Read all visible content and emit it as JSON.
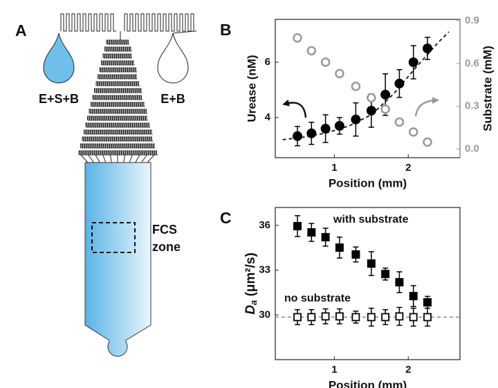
{
  "diagram": {
    "panel_label": "A",
    "inlet_left": "E+S+B",
    "inlet_right": "E+B",
    "zone_label": [
      "FCS",
      "zone"
    ]
  },
  "chart_data": [
    {
      "type": "scatter",
      "panel_label": "B",
      "xlabel": "Position (mm)",
      "ylabel": "Urease (nM)",
      "y2label": "Substrate (mM)",
      "xlim": [
        0.2,
        2.7
      ],
      "xticks": [
        1,
        2
      ],
      "ylim": [
        2.55,
        7.55
      ],
      "yticks": [
        4,
        6
      ],
      "y2lim": [
        -0.06,
        0.91
      ],
      "y2ticks": [
        {
          "value": 0,
          "label": "0.0"
        },
        {
          "value": 0.3,
          "label": "0.3"
        },
        0.6,
        0.9
      ],
      "series": [
        {
          "color": "#000000",
          "marker": "filled-circle",
          "x": [
            0.5,
            0.69,
            0.88,
            1.07,
            1.29,
            1.5,
            1.69,
            1.88,
            2.07,
            2.26
          ],
          "values": [
            3.33,
            3.43,
            3.6,
            3.7,
            3.93,
            4.25,
            4.83,
            5.23,
            6.0,
            6.5
          ],
          "errors": [
            0.35,
            0.4,
            0.5,
            0.3,
            0.6,
            0.6,
            0.75,
            0.5,
            0.6,
            0.4
          ]
        },
        {
          "color": "#999999",
          "marker": "open-circle",
          "axis": "y2",
          "x": [
            0.5,
            0.69,
            0.88,
            1.07,
            1.29,
            1.5,
            1.69,
            1.88,
            2.07,
            2.26
          ],
          "values": [
            0.78,
            0.69,
            0.61,
            0.53,
            0.44,
            0.36,
            0.28,
            0.19,
            0.12,
            0.05
          ]
        }
      ],
      "fit": {
        "x": [
          0.3,
          0.6,
          0.9,
          1.2,
          1.5,
          1.8,
          2.1,
          2.4,
          2.55
        ],
        "values": [
          3.2,
          3.3,
          3.45,
          3.7,
          4.1,
          4.85,
          5.8,
          6.7,
          7.1
        ]
      }
    },
    {
      "type": "scatter",
      "panel_label": "C",
      "xlabel": "Position (mm)",
      "ylabel": {
        "main": "D",
        "sub": "a",
        "unit": " (μm²/s)"
      },
      "xlim": [
        0.2,
        2.7
      ],
      "xticks": [
        1,
        2
      ],
      "ylim": [
        27,
        37.2
      ],
      "yticks": [
        30,
        33,
        36
      ],
      "series": [
        {
          "color": "#000000",
          "marker": "filled-square",
          "x": [
            0.5,
            0.69,
            0.88,
            1.07,
            1.29,
            1.5,
            1.69,
            1.88,
            2.07,
            2.26
          ],
          "values": [
            35.95,
            35.53,
            35.21,
            34.51,
            34.05,
            33.44,
            32.74,
            32.19,
            31.26,
            30.84
          ],
          "errors": [
            0.7,
            0.6,
            0.6,
            0.7,
            0.5,
            0.8,
            0.4,
            0.7,
            0.7,
            0.4
          ]
        },
        {
          "color": "#000000",
          "marker": "open-square",
          "x": [
            0.5,
            0.69,
            0.88,
            1.07,
            1.29,
            1.5,
            1.69,
            1.88,
            2.07,
            2.26
          ],
          "values": [
            29.85,
            29.85,
            29.9,
            29.9,
            29.85,
            29.85,
            29.85,
            29.9,
            29.85,
            29.85
          ],
          "errors": [
            0.5,
            0.5,
            0.5,
            0.5,
            0.4,
            0.6,
            0.5,
            0.6,
            0.6,
            0.6
          ]
        }
      ],
      "annotations": [
        "with substrate",
        "no substrate"
      ],
      "reference_line": 29.85,
      "reference_color": "#888888"
    }
  ]
}
